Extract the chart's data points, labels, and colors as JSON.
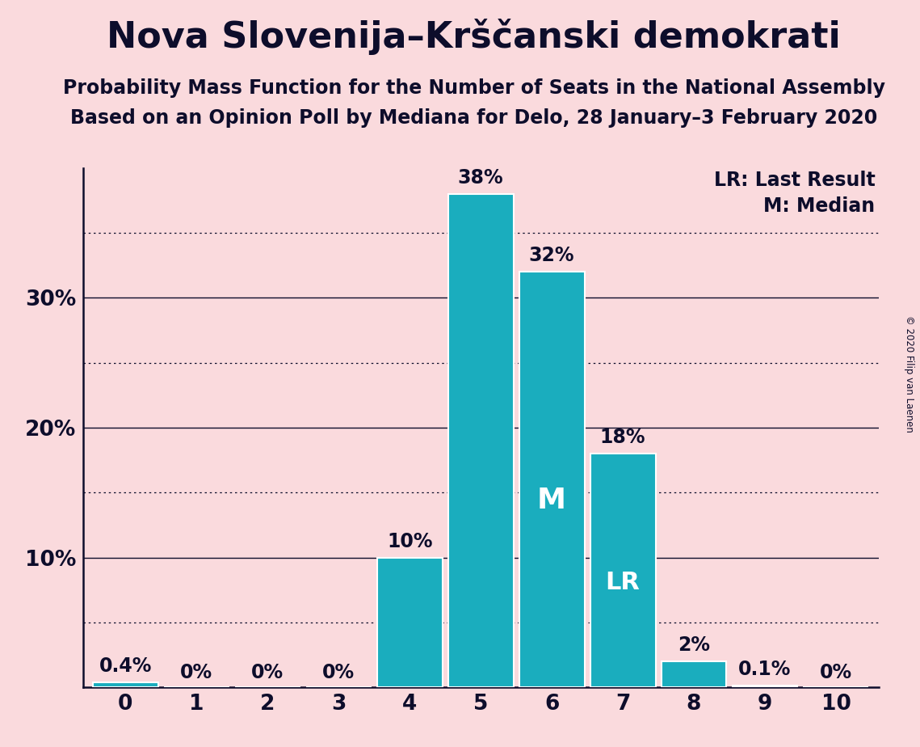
{
  "title": "Nova Slovenija–Krščanski demokrati",
  "subtitle1": "Probability Mass Function for the Number of Seats in the National Assembly",
  "subtitle2": "Based on an Opinion Poll by Mediana for Delo, 28 January–3 February 2020",
  "copyright": "© 2020 Filip van Laenen",
  "categories": [
    0,
    1,
    2,
    3,
    4,
    5,
    6,
    7,
    8,
    9,
    10
  ],
  "values": [
    0.4,
    0.0,
    0.0,
    0.0,
    10.0,
    38.0,
    32.0,
    18.0,
    2.0,
    0.1,
    0.0
  ],
  "bar_color": "#1AADBE",
  "background_color": "#FADADD",
  "text_color": "#0D0D2B",
  "bar_labels": [
    "0.4%",
    "0%",
    "0%",
    "0%",
    "10%",
    "38%",
    "32%",
    "18%",
    "2%",
    "0.1%",
    "0%"
  ],
  "median_bar_idx": 6,
  "lr_bar_idx": 7,
  "ylim": [
    0,
    40
  ],
  "solid_gridlines": [
    10,
    20,
    30
  ],
  "dotted_gridlines": [
    5,
    15,
    25,
    35
  ],
  "yticks": [
    0,
    10,
    20,
    30
  ],
  "ytick_labels": [
    "",
    "10%",
    "20%",
    "30%"
  ],
  "legend_lr": "LR: Last Result",
  "legend_m": "M: Median",
  "title_fontsize": 32,
  "subtitle_fontsize": 17,
  "bar_label_fontsize": 17,
  "axis_label_fontsize": 19,
  "legend_fontsize": 17,
  "m_label_fontsize": 26,
  "lr_label_fontsize": 22
}
